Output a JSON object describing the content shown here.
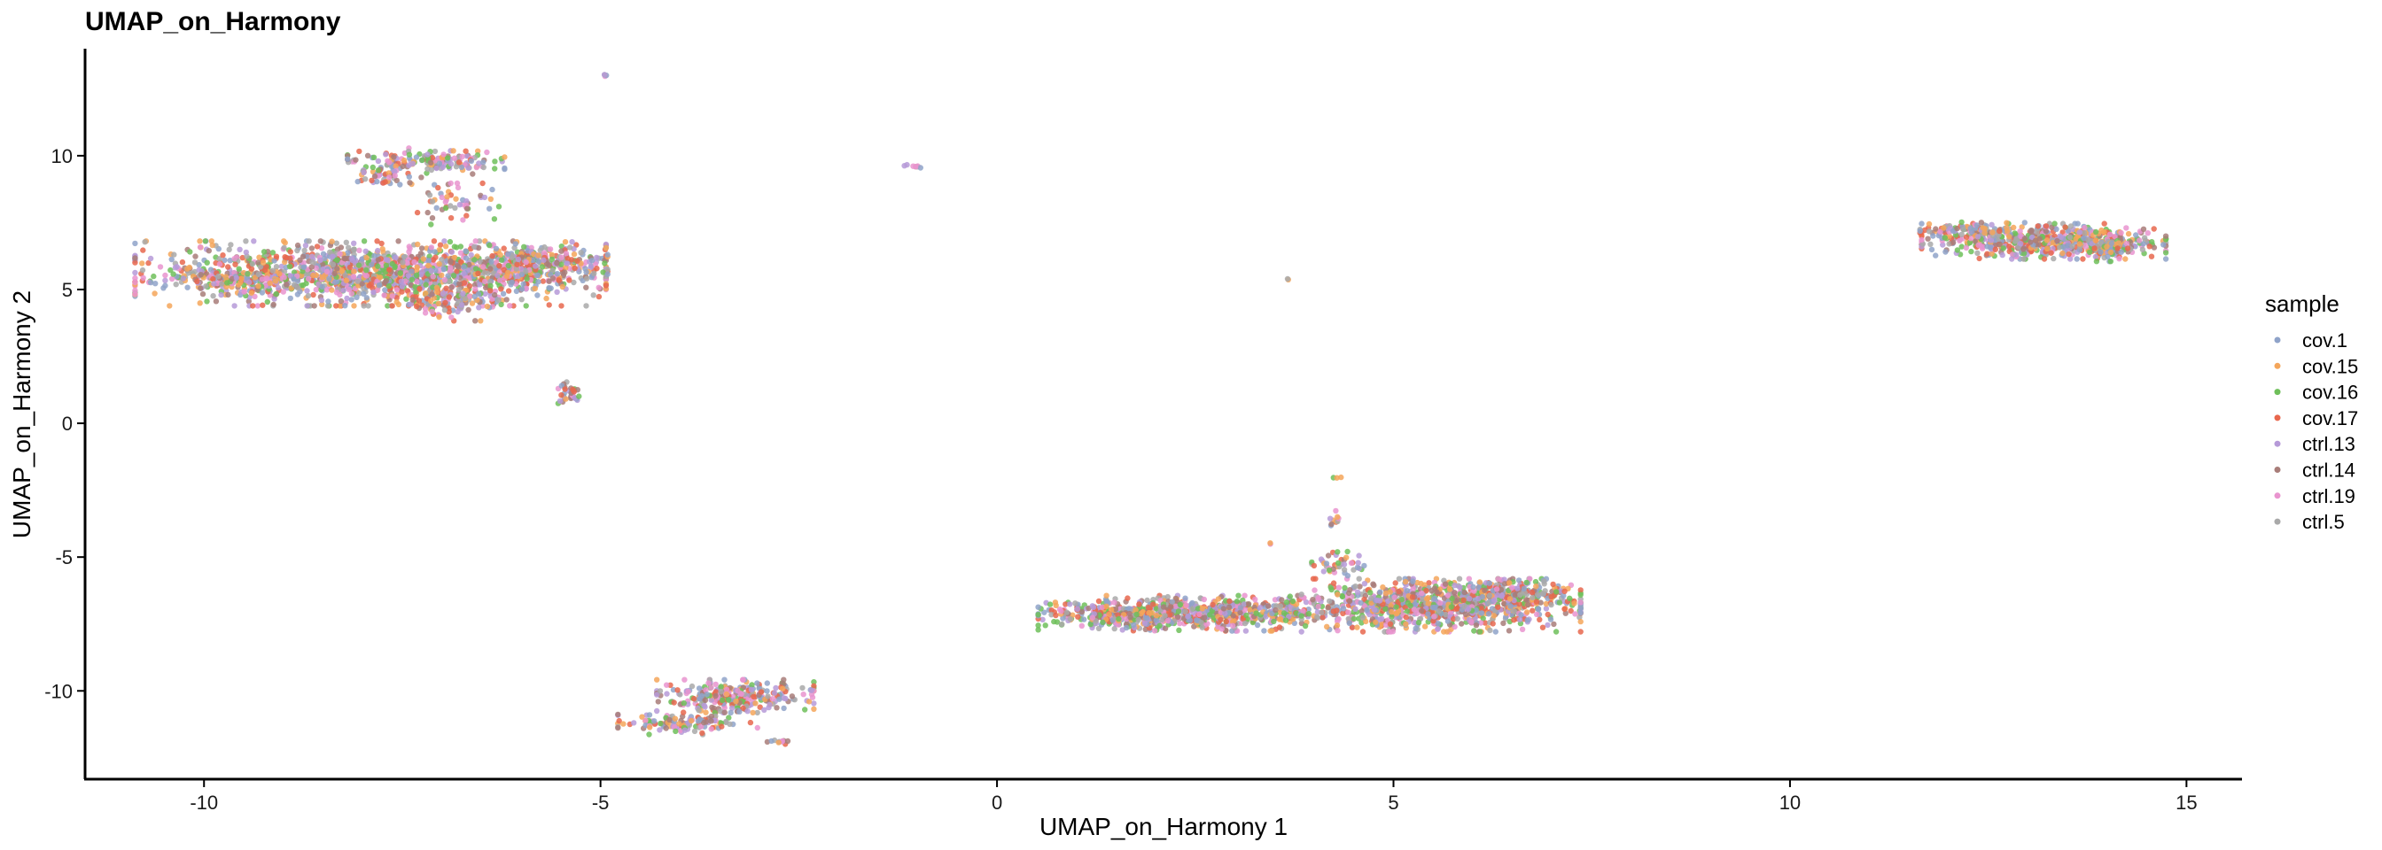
{
  "chart_data": {
    "type": "scatter",
    "title": "UMAP_on_Harmony",
    "xlabel": "UMAP_on_Harmony 1",
    "ylabel": "UMAP_on_Harmony 2",
    "xlim": [
      -11.5,
      15.7
    ],
    "ylim": [
      -13.3,
      14.0
    ],
    "xticks": [
      -10,
      -5,
      0,
      5,
      10,
      15
    ],
    "yticks": [
      -10,
      -5,
      0,
      5,
      10
    ],
    "grid": false,
    "legend": {
      "title": "sample",
      "placement": "right"
    },
    "series": [
      {
        "name": "cov.1",
        "color": "#8fa3c9"
      },
      {
        "name": "cov.15",
        "color": "#f4a65b"
      },
      {
        "name": "cov.16",
        "color": "#6fbf5a"
      },
      {
        "name": "cov.17",
        "color": "#e8674d"
      },
      {
        "name": "ctrl.13",
        "color": "#b69ad8"
      },
      {
        "name": "ctrl.14",
        "color": "#a87d79"
      },
      {
        "name": "ctrl.19",
        "color": "#e994cf"
      },
      {
        "name": "ctrl.5",
        "color": "#a9a9a9"
      }
    ],
    "clusters": [
      {
        "cx": -7.9,
        "cy": 5.6,
        "sx": 1.35,
        "sy": 0.55,
        "n": 1500
      },
      {
        "cx": -5.9,
        "cy": 5.9,
        "sx": 0.45,
        "sy": 0.4,
        "n": 300
      },
      {
        "cx": -9.5,
        "cy": 5.35,
        "sx": 0.45,
        "sy": 0.12,
        "n": 90
      },
      {
        "cx": -6.9,
        "cy": 4.6,
        "sx": 0.35,
        "sy": 0.35,
        "n": 120
      },
      {
        "cx": -7.2,
        "cy": 9.8,
        "sx": 0.45,
        "sy": 0.22,
        "n": 170
      },
      {
        "cx": -7.7,
        "cy": 9.2,
        "sx": 0.2,
        "sy": 0.15,
        "n": 40
      },
      {
        "cx": -6.8,
        "cy": 8.2,
        "sx": 0.25,
        "sy": 0.35,
        "n": 50
      },
      {
        "cx": -5.4,
        "cy": 1.1,
        "sx": 0.08,
        "sy": 0.2,
        "n": 35
      },
      {
        "cx": -4.95,
        "cy": 13.0,
        "sx": 0.03,
        "sy": 0.03,
        "n": 4
      },
      {
        "cx": -1.05,
        "cy": 9.6,
        "sx": 0.06,
        "sy": 0.04,
        "n": 8
      },
      {
        "cx": 3.65,
        "cy": 5.4,
        "sx": 0.02,
        "sy": 0.02,
        "n": 2
      },
      {
        "cx": -3.3,
        "cy": -10.2,
        "sx": 0.45,
        "sy": 0.28,
        "n": 280
      },
      {
        "cx": -3.9,
        "cy": -11.2,
        "sx": 0.4,
        "sy": 0.2,
        "n": 120
      },
      {
        "cx": -2.75,
        "cy": -11.9,
        "sx": 0.08,
        "sy": 0.05,
        "n": 10
      },
      {
        "cx": 2.5,
        "cy": -7.1,
        "sx": 0.9,
        "sy": 0.3,
        "n": 700
      },
      {
        "cx": 1.6,
        "cy": -7.2,
        "sx": 0.45,
        "sy": 0.2,
        "n": 150
      },
      {
        "cx": 5.6,
        "cy": -6.8,
        "sx": 0.8,
        "sy": 0.45,
        "n": 900
      },
      {
        "cx": 6.4,
        "cy": -6.3,
        "sx": 0.4,
        "sy": 0.22,
        "n": 150
      },
      {
        "cx": 4.25,
        "cy": -3.6,
        "sx": 0.05,
        "sy": 0.15,
        "n": 10
      },
      {
        "cx": 4.3,
        "cy": -2.0,
        "sx": 0.03,
        "sy": 0.03,
        "n": 3
      },
      {
        "cx": 4.3,
        "cy": -5.3,
        "sx": 0.15,
        "sy": 0.25,
        "n": 40
      },
      {
        "cx": 3.45,
        "cy": -4.5,
        "sx": 0.02,
        "sy": 0.03,
        "n": 2
      },
      {
        "cx": 13.2,
        "cy": 6.8,
        "sx": 0.7,
        "sy": 0.3,
        "n": 550
      },
      {
        "cx": 12.3,
        "cy": 7.2,
        "sx": 0.3,
        "sy": 0.15,
        "n": 90
      },
      {
        "cx": 14.0,
        "cy": 6.6,
        "sx": 0.25,
        "sy": 0.25,
        "n": 90
      }
    ]
  }
}
